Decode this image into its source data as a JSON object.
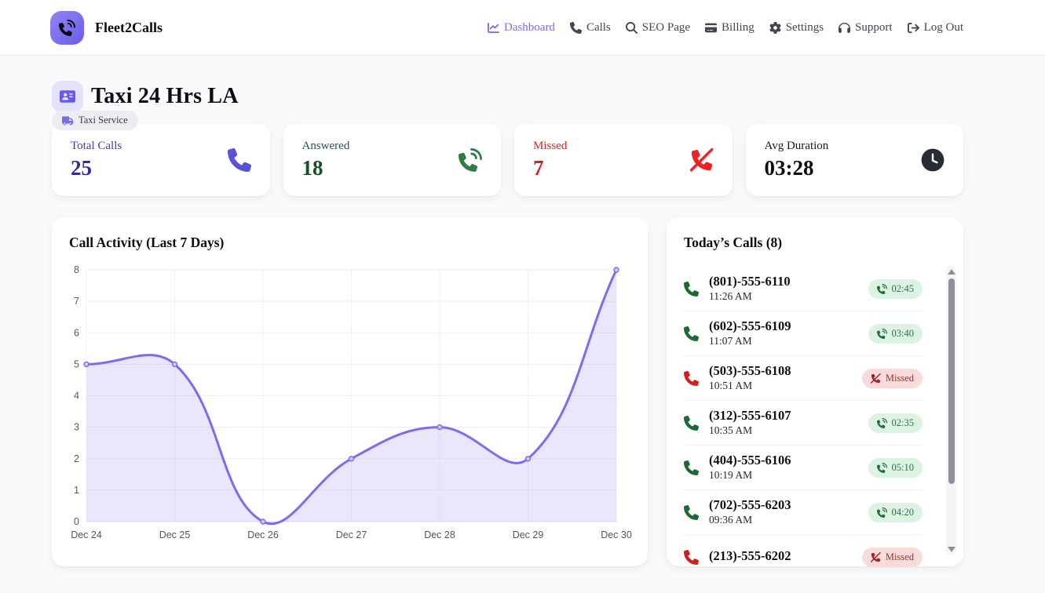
{
  "header": {
    "brand": "Fleet2Calls",
    "logo_icon": "phone-volume-icon",
    "accent_color": "#7a6fe0",
    "nav": [
      {
        "label": "Dashboard",
        "icon": "chart-line-icon",
        "active": true
      },
      {
        "label": "Calls",
        "icon": "phone-icon",
        "active": false
      },
      {
        "label": "SEO Page",
        "icon": "magnifier-icon",
        "active": false
      },
      {
        "label": "Billing",
        "icon": "credit-card-icon",
        "active": false
      },
      {
        "label": "Settings",
        "icon": "gear-icon",
        "active": false
      },
      {
        "label": "Support",
        "icon": "headphones-icon",
        "active": false
      },
      {
        "label": "Log Out",
        "icon": "logout-icon",
        "active": false
      }
    ]
  },
  "business": {
    "icon": "id-card-icon",
    "title": "Taxi 24 Hrs LA",
    "category_icon": "truck-icon",
    "category": "Taxi Service"
  },
  "stats": [
    {
      "label": "Total Calls",
      "value": "25",
      "icon": "phone-icon",
      "label_color": "#3d3dae",
      "value_color": "#2c2ca3",
      "icon_color": "#5a52d5"
    },
    {
      "label": "Answered",
      "value": "18",
      "icon": "phone-volume-icon",
      "label_color": "#1d5c30",
      "value_color": "#174f28",
      "icon_color": "#2e7d46"
    },
    {
      "label": "Missed",
      "value": "7",
      "icon": "phone-slash-icon",
      "label_color": "#e02222",
      "value_color": "#de1c1c",
      "icon_color": "#ee2222"
    },
    {
      "label": "Avg Duration",
      "value": "03:28",
      "icon": "clock-icon",
      "label_color": "#15171b",
      "value_color": "#0b0d10",
      "icon_color": "#272b33"
    }
  ],
  "chart_data": {
    "type": "line",
    "title": "Call Activity (Last 7 Days)",
    "categories": [
      "Dec 24",
      "Dec 25",
      "Dec 26",
      "Dec 27",
      "Dec 28",
      "Dec 29",
      "Dec 30"
    ],
    "values": [
      5,
      5,
      0,
      2,
      3,
      2,
      8
    ],
    "xlabel": "",
    "ylabel": "",
    "ylim": [
      0,
      8
    ],
    "ytick_step": 1,
    "grid": true,
    "legend": false,
    "line_color": "#7b6cf0",
    "point_fill": "#cdc6f6",
    "fill_color": "rgba(123,108,240,0.16)"
  },
  "todays_calls": {
    "title": "Today’s Calls (8)",
    "row_icon": "phone-icon",
    "answered_badge_icon": "phone-volume-icon",
    "missed_badge_icon": "phone-slash-icon",
    "status_colors": {
      "answered": "#2e7d46",
      "missed": "#d82020"
    },
    "items": [
      {
        "number": "(801)-555-6110",
        "time": "11:26 AM",
        "status": "answered",
        "badge": "02:45"
      },
      {
        "number": "(602)-555-6109",
        "time": "11:07 AM",
        "status": "answered",
        "badge": "03:40"
      },
      {
        "number": "(503)-555-6108",
        "time": "10:51 AM",
        "status": "missed",
        "badge": "Missed"
      },
      {
        "number": "(312)-555-6107",
        "time": "10:35 AM",
        "status": "answered",
        "badge": "02:35"
      },
      {
        "number": "(404)-555-6106",
        "time": "10:19 AM",
        "status": "answered",
        "badge": "05:10"
      },
      {
        "number": "(702)-555-6203",
        "time": "09:36 AM",
        "status": "answered",
        "badge": "04:20"
      },
      {
        "number": "(213)-555-6202",
        "time": "",
        "status": "missed",
        "badge": "Missed"
      }
    ]
  }
}
